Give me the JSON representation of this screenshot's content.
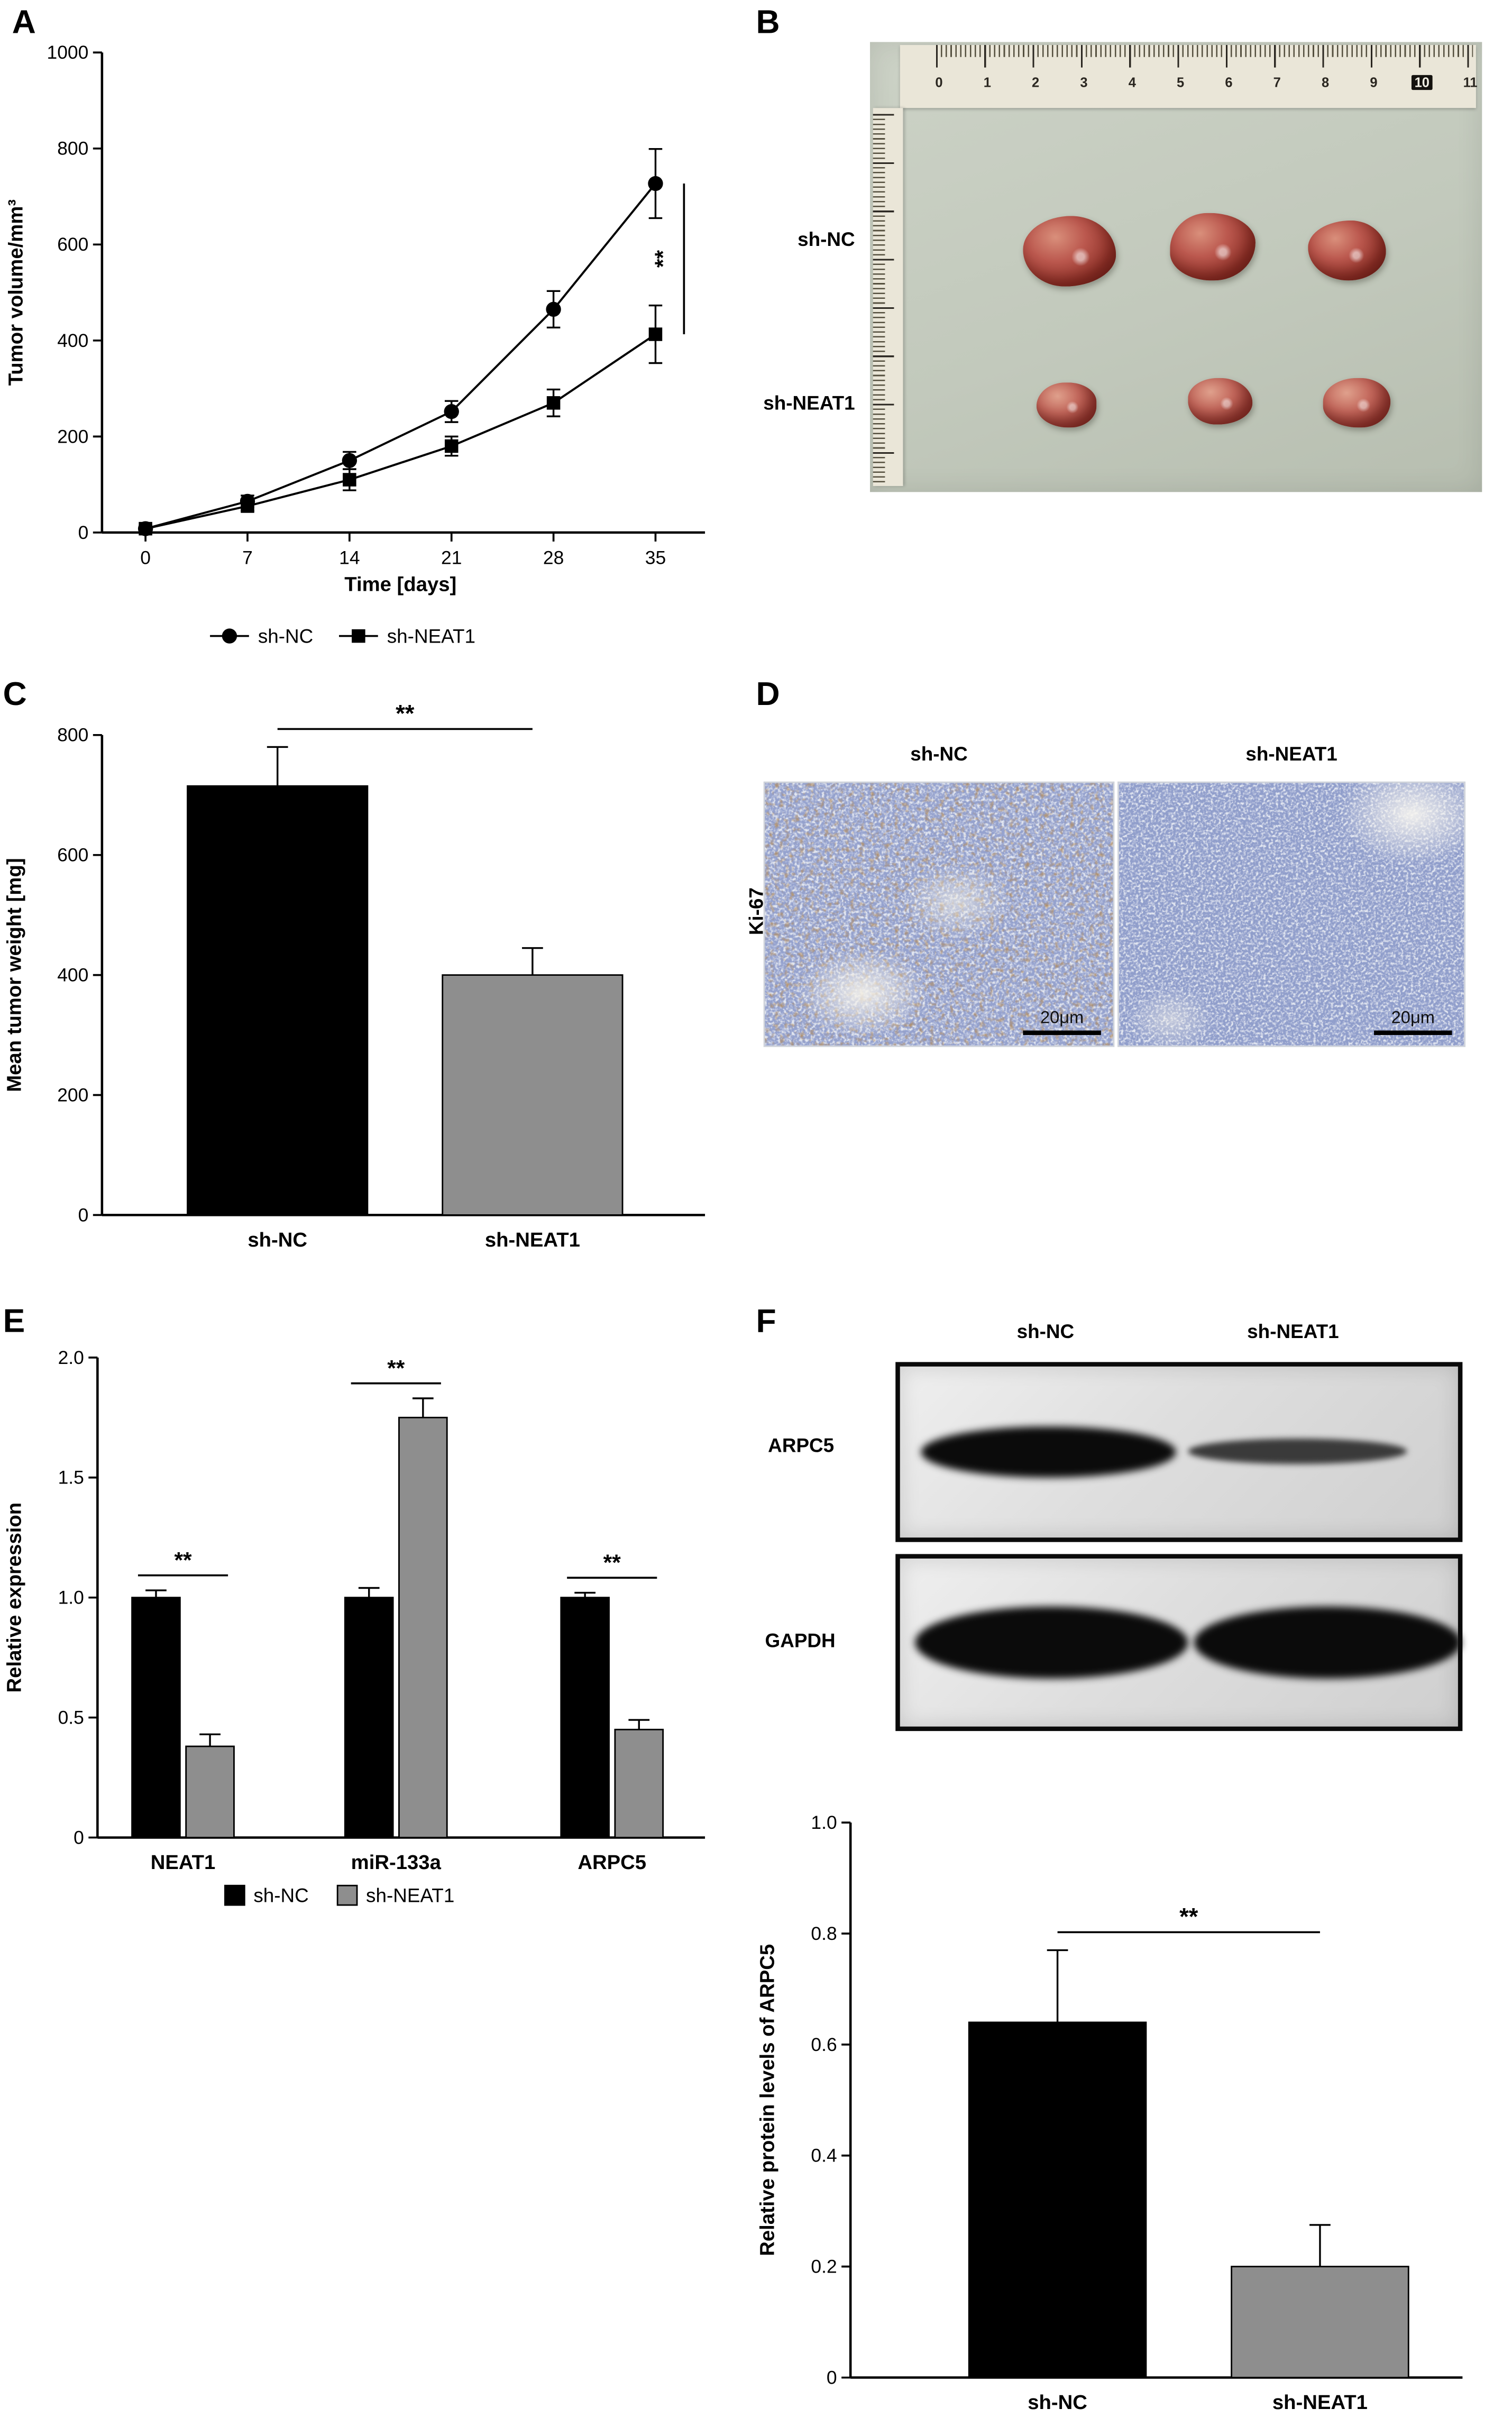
{
  "panels": {
    "a": {
      "label": "A"
    },
    "b": {
      "label": "B",
      "row_labels": [
        "sh-NC",
        "sh-NEAT1"
      ],
      "ruler_numbers": [
        "0",
        "1",
        "2",
        "3",
        "4",
        "5",
        "6",
        "7",
        "8",
        "9",
        "10",
        "11"
      ]
    },
    "c": {
      "label": "C"
    },
    "d": {
      "label": "D",
      "column_labels": [
        "sh-NC",
        "sh-NEAT1"
      ],
      "row_label": "Ki-67",
      "scale_bar_label": "20μm"
    },
    "e": {
      "label": "E"
    },
    "f": {
      "label": "F",
      "column_labels": [
        "sh-NC",
        "sh-NEAT1"
      ],
      "blot_row_labels": [
        "ARPC5",
        "GAPDH"
      ]
    }
  },
  "chart_data": [
    {
      "panel": "A",
      "type": "line",
      "title": "",
      "xlabel": "Time [days]",
      "ylabel": "Tumor volume/mm³",
      "x": [
        0,
        7,
        14,
        21,
        28,
        35
      ],
      "xtick_labels": [
        "0",
        "7",
        "14",
        "21",
        "28",
        "35"
      ],
      "ylim": [
        0,
        1000
      ],
      "yticks": [
        0,
        200,
        400,
        600,
        800,
        1000
      ],
      "ytick_labels": [
        "0",
        "200",
        "400",
        "600",
        "800",
        "1000"
      ],
      "legend_position": "bottom",
      "series": [
        {
          "name": "sh-NC",
          "marker": "circle",
          "color": "#000000",
          "values": [
            8,
            65,
            150,
            252,
            465,
            727
          ],
          "errors": [
            5,
            12,
            18,
            22,
            38,
            72
          ]
        },
        {
          "name": "sh-NEAT1",
          "marker": "square",
          "color": "#000000",
          "values": [
            8,
            55,
            110,
            180,
            270,
            413
          ],
          "errors": [
            5,
            10,
            22,
            20,
            28,
            60
          ]
        }
      ],
      "significance": {
        "label": "**",
        "at_x": 35,
        "between": [
          "sh-NC",
          "sh-NEAT1"
        ]
      }
    },
    {
      "panel": "C",
      "type": "bar",
      "title": "",
      "xlabel": "",
      "ylabel": "Mean tumor weight [mg]",
      "ylim": [
        0,
        800
      ],
      "yticks": [
        0,
        200,
        400,
        600,
        800
      ],
      "ytick_labels": [
        "0",
        "200",
        "400",
        "600",
        "800"
      ],
      "categories": [
        "sh-NC",
        "sh-NEAT1"
      ],
      "values": [
        715,
        400
      ],
      "errors": [
        65,
        45
      ],
      "colors": [
        "#000000",
        "#8e8e8e"
      ],
      "significance": {
        "label": "**",
        "pair": [
          "sh-NC",
          "sh-NEAT1"
        ]
      }
    },
    {
      "panel": "E",
      "type": "grouped-bar",
      "title": "",
      "xlabel": "",
      "ylabel": "Relative expression",
      "ylim": [
        0,
        2
      ],
      "yticks": [
        0,
        0.5,
        1,
        1.5,
        2
      ],
      "ytick_labels": [
        "0",
        "0.5",
        "1.0",
        "1.5",
        "2.0"
      ],
      "categories": [
        "NEAT1",
        "miR-133a",
        "ARPC5"
      ],
      "legend_position": "bottom",
      "series": [
        {
          "name": "sh-NC",
          "color": "#000000",
          "values": [
            1.0,
            1.0,
            1.0
          ],
          "errors": [
            0.03,
            0.04,
            0.02
          ]
        },
        {
          "name": "sh-NEAT1",
          "color": "#8e8e8e",
          "values": [
            0.38,
            1.75,
            0.45
          ],
          "errors": [
            0.05,
            0.08,
            0.04
          ]
        }
      ],
      "significance": {
        "label": "**",
        "per_group": true
      }
    },
    {
      "panel": "F",
      "type": "bar",
      "title": "",
      "xlabel": "",
      "ylabel": "Relative protein levels of ARPC5",
      "ylim": [
        0,
        1
      ],
      "yticks": [
        0,
        0.2,
        0.4,
        0.6,
        0.8,
        1
      ],
      "ytick_labels": [
        "0",
        "0.2",
        "0.4",
        "0.6",
        "0.8",
        "1.0"
      ],
      "categories": [
        "sh-NC",
        "sh-NEAT1"
      ],
      "values": [
        0.64,
        0.2
      ],
      "errors": [
        0.13,
        0.075
      ],
      "colors": [
        "#000000",
        "#8e8e8e"
      ],
      "significance": {
        "label": "**",
        "pair": [
          "sh-NC",
          "sh-NEAT1"
        ]
      }
    }
  ]
}
